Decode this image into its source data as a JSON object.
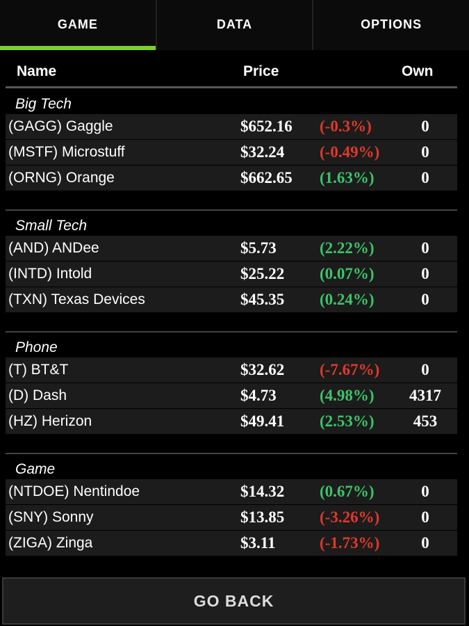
{
  "tabs": {
    "items": [
      "GAME",
      "DATA",
      "OPTIONS"
    ],
    "active": 0
  },
  "header": {
    "name": "Name",
    "price": "Price",
    "own": "Own"
  },
  "groups": [
    {
      "label": "Big Tech",
      "rows": [
        {
          "name": "(GAGG) Gaggle",
          "price": "$652.16",
          "change": "(-0.3%)",
          "own": "0"
        },
        {
          "name": "(MSTF) Microstuff",
          "price": "$32.24",
          "change": "(-0.49%)",
          "own": "0"
        },
        {
          "name": "(ORNG) Orange",
          "price": "$662.65",
          "change": "(1.63%)",
          "own": "0"
        }
      ]
    },
    {
      "label": "Small Tech",
      "rows": [
        {
          "name": "(AND) ANDee",
          "price": "$5.73",
          "change": "(2.22%)",
          "own": "0"
        },
        {
          "name": "(INTD) Intold",
          "price": "$25.22",
          "change": "(0.07%)",
          "own": "0"
        },
        {
          "name": "(TXN) Texas Devices",
          "price": "$45.35",
          "change": "(0.24%)",
          "own": "0"
        }
      ]
    },
    {
      "label": "Phone",
      "rows": [
        {
          "name": "(T) BT&T",
          "price": "$32.62",
          "change": "(-7.67%)",
          "own": "0"
        },
        {
          "name": "(D) Dash",
          "price": "$4.73",
          "change": "(4.98%)",
          "own": "4317"
        },
        {
          "name": "(HZ) Herizon",
          "price": "$49.41",
          "change": "(2.53%)",
          "own": "453"
        }
      ]
    },
    {
      "label": "Game",
      "rows": [
        {
          "name": "(NTDOE) Nentindoe",
          "price": "$14.32",
          "change": "(0.67%)",
          "own": "0"
        },
        {
          "name": "(SNY) Sonny",
          "price": "$13.85",
          "change": "(-3.26%)",
          "own": "0"
        },
        {
          "name": "(ZIGA) Zinga",
          "price": "$3.11",
          "change": "(-1.73%)",
          "own": "0"
        }
      ]
    }
  ],
  "button": {
    "label": "GO BACK"
  }
}
